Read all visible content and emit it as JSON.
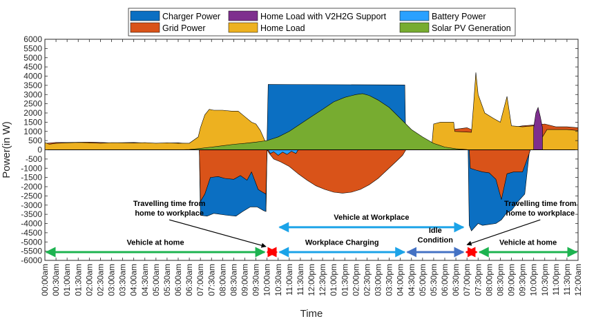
{
  "chart_data": {
    "type": "area",
    "xlabel": "Time",
    "ylabel": "Power(in W)",
    "ylim": [
      -6000,
      6000
    ],
    "ytick_step": 500,
    "x_unit": "hours",
    "xlim": [
      0,
      24
    ],
    "x_tick_labels": [
      "00:00am",
      "00:30am",
      "01:00am",
      "01:30am",
      "02:00am",
      "02:30am",
      "03:00am",
      "03:30am",
      "04:00am",
      "04:30am",
      "05:00am",
      "05:30am",
      "06:00am",
      "06:30am",
      "07:00am",
      "07:30am",
      "08:00am",
      "08:30am",
      "09:00am",
      "09:30am",
      "10:00am",
      "10:30am",
      "11:00am",
      "11:30am",
      "12:00pm",
      "12:30pm",
      "01:00pm",
      "01:30pm",
      "02:00pm",
      "02:30pm",
      "03:00pm",
      "03:30pm",
      "04:00pm",
      "04:30pm",
      "05:00pm",
      "05:30pm",
      "06:00pm",
      "06:30pm",
      "07:00pm",
      "07:30pm",
      "08:00pm",
      "08:30pm",
      "09:00pm",
      "09:30pm",
      "10:00pm",
      "10:30pm",
      "11:00pm",
      "11:30pm",
      "12:00am"
    ],
    "grid": false,
    "legend_position": "top",
    "series": [
      {
        "name": "Charger Power",
        "color": "#0b6fc2",
        "points": [
          [
            0,
            0
          ],
          [
            9.95,
            0
          ],
          [
            9.95,
            -3350
          ],
          [
            10,
            600
          ],
          [
            10.05,
            3550
          ],
          [
            16.2,
            3520
          ],
          [
            16.25,
            0
          ],
          [
            19.05,
            0
          ],
          [
            19.1,
            -4100
          ],
          [
            19.2,
            -4400
          ],
          [
            19.5,
            -4000
          ],
          [
            19.7,
            -4100
          ],
          [
            20,
            -4050
          ],
          [
            20.3,
            -4000
          ],
          [
            20.55,
            -3800
          ],
          [
            20.8,
            -3400
          ],
          [
            21,
            -3300
          ],
          [
            21.3,
            -2800
          ],
          [
            21.6,
            -2400
          ],
          [
            21.8,
            -200
          ],
          [
            21.85,
            0
          ],
          [
            24,
            0
          ]
        ],
        "lower": [
          [
            0,
            0
          ],
          [
            6.95,
            0
          ],
          [
            7,
            -3550
          ],
          [
            7.3,
            -3600
          ],
          [
            7.6,
            -3450
          ],
          [
            8.2,
            -3550
          ],
          [
            8.6,
            -3600
          ],
          [
            8.9,
            -3350
          ],
          [
            9.25,
            -3100
          ],
          [
            9.55,
            -3100
          ],
          [
            9.85,
            -3300
          ],
          [
            9.95,
            -3350
          ],
          [
            10,
            0
          ],
          [
            24,
            0
          ]
        ],
        "shape": "custom"
      },
      {
        "name": "Grid Power",
        "color": "#d95319",
        "points": [
          [
            0,
            0
          ],
          [
            6.95,
            0
          ],
          [
            7,
            -2800
          ],
          [
            7.2,
            -2400
          ],
          [
            7.45,
            -1500
          ],
          [
            7.8,
            -1450
          ],
          [
            8.1,
            -1550
          ],
          [
            8.5,
            -1600
          ],
          [
            8.8,
            -1400
          ],
          [
            9.1,
            -1650
          ],
          [
            9.3,
            -1200
          ],
          [
            9.6,
            -2150
          ],
          [
            9.8,
            -2300
          ],
          [
            9.95,
            -2400
          ],
          [
            10,
            0
          ],
          [
            10.1,
            -200
          ],
          [
            10.3,
            -500
          ],
          [
            10.6,
            -650
          ],
          [
            11,
            -900
          ],
          [
            11.4,
            -1300
          ],
          [
            11.8,
            -1650
          ],
          [
            12.2,
            -1950
          ],
          [
            12.6,
            -2150
          ],
          [
            13,
            -2300
          ],
          [
            13.4,
            -2350
          ],
          [
            13.8,
            -2300
          ],
          [
            14.2,
            -2150
          ],
          [
            14.6,
            -1900
          ],
          [
            15,
            -1550
          ],
          [
            15.4,
            -1100
          ],
          [
            15.8,
            -650
          ],
          [
            16.1,
            -300
          ],
          [
            16.25,
            0
          ],
          [
            19.1,
            0
          ],
          [
            19.15,
            -1000
          ],
          [
            19.4,
            -1100
          ],
          [
            19.7,
            -1200
          ],
          [
            20,
            -1250
          ],
          [
            20.3,
            -1600
          ],
          [
            20.55,
            -2700
          ],
          [
            20.8,
            -1300
          ],
          [
            21.1,
            -1200
          ],
          [
            21.5,
            -1200
          ],
          [
            21.8,
            -200
          ],
          [
            21.85,
            0
          ],
          [
            24,
            0
          ]
        ],
        "upper": [
          [
            0,
            350
          ],
          [
            0.5,
            400
          ],
          [
            1,
            400
          ],
          [
            2,
            420
          ],
          [
            3,
            380
          ],
          [
            4,
            400
          ],
          [
            5,
            350
          ],
          [
            6,
            380
          ],
          [
            6.5,
            330
          ],
          [
            7,
            300
          ],
          [
            8,
            300
          ],
          [
            9,
            300
          ],
          [
            9.9,
            300
          ],
          [
            10,
            0
          ],
          [
            16.25,
            0
          ],
          [
            16.5,
            0
          ],
          [
            17,
            0
          ],
          [
            17.4,
            0
          ],
          [
            18.3,
            1100
          ],
          [
            18.7,
            1150
          ],
          [
            19,
            1200
          ],
          [
            19.2,
            1100
          ],
          [
            19.5,
            1300
          ],
          [
            20,
            1200
          ],
          [
            21,
            1200
          ],
          [
            21.5,
            1300
          ],
          [
            22,
            1350
          ],
          [
            22.5,
            1400
          ],
          [
            23,
            1250
          ],
          [
            23.5,
            1250
          ],
          [
            24,
            1200
          ]
        ]
      },
      {
        "name": "Home Load",
        "color": "#edb120",
        "points": [
          [
            0,
            400
          ],
          [
            0.2,
            300
          ],
          [
            0.5,
            350
          ],
          [
            1,
            380
          ],
          [
            1.5,
            400
          ],
          [
            2,
            380
          ],
          [
            2.5,
            360
          ],
          [
            3,
            390
          ],
          [
            3.5,
            380
          ],
          [
            4,
            370
          ],
          [
            4.5,
            390
          ],
          [
            5,
            360
          ],
          [
            5.5,
            380
          ],
          [
            6,
            360
          ],
          [
            6.5,
            360
          ],
          [
            6.9,
            700
          ],
          [
            7,
            1200
          ],
          [
            7.2,
            1900
          ],
          [
            7.4,
            2200
          ],
          [
            7.6,
            2150
          ],
          [
            8,
            2150
          ],
          [
            8.4,
            2100
          ],
          [
            8.7,
            2100
          ],
          [
            9,
            1800
          ],
          [
            9.3,
            1500
          ],
          [
            9.5,
            1400
          ],
          [
            9.7,
            1050
          ],
          [
            9.9,
            500
          ],
          [
            10,
            0
          ],
          [
            16.2,
            0
          ],
          [
            17.4,
            0
          ],
          [
            17.5,
            1400
          ],
          [
            17.8,
            1500
          ],
          [
            18.4,
            1500
          ],
          [
            18.45,
            1000
          ],
          [
            19.2,
            950
          ],
          [
            19.3,
            2500
          ],
          [
            19.4,
            4200
          ],
          [
            19.5,
            3000
          ],
          [
            19.8,
            2000
          ],
          [
            20.2,
            1700
          ],
          [
            20.5,
            1500
          ],
          [
            20.8,
            2900
          ],
          [
            21,
            1300
          ],
          [
            21.5,
            1250
          ],
          [
            22,
            1300
          ],
          [
            22.3,
            500
          ],
          [
            22.6,
            1100
          ],
          [
            23,
            1100
          ],
          [
            23.5,
            1100
          ],
          [
            24,
            1050
          ]
        ]
      },
      {
        "name": "Solar PV Generation",
        "color": "#77ac30",
        "points": [
          [
            6,
            0
          ],
          [
            6.5,
            20
          ],
          [
            7,
            80
          ],
          [
            7.5,
            150
          ],
          [
            8,
            220
          ],
          [
            8.5,
            300
          ],
          [
            9,
            350
          ],
          [
            9.5,
            420
          ],
          [
            10,
            500
          ],
          [
            10.5,
            700
          ],
          [
            11,
            1000
          ],
          [
            11.5,
            1400
          ],
          [
            12,
            1800
          ],
          [
            12.5,
            2200
          ],
          [
            13,
            2600
          ],
          [
            13.5,
            2850
          ],
          [
            14,
            3000
          ],
          [
            14.3,
            3050
          ],
          [
            14.6,
            2950
          ],
          [
            15,
            2700
          ],
          [
            15.5,
            2300
          ],
          [
            16,
            1700
          ],
          [
            16.5,
            1100
          ],
          [
            17,
            700
          ],
          [
            17.5,
            350
          ],
          [
            18,
            150
          ],
          [
            18.5,
            60
          ],
          [
            19,
            10
          ],
          [
            19.3,
            0
          ]
        ]
      },
      {
        "name": "Home Load with V2H2G Support",
        "color": "#7e2f8e",
        "points": [
          [
            22.0,
            1200
          ],
          [
            22.1,
            2000
          ],
          [
            22.2,
            2300
          ],
          [
            22.3,
            1800
          ],
          [
            22.4,
            1200
          ]
        ]
      },
      {
        "name": "Battery Power",
        "color": "#2aa1ff",
        "points": [
          [
            10.05,
            0
          ],
          [
            10.15,
            -200
          ],
          [
            10.3,
            -100
          ],
          [
            10.5,
            -300
          ],
          [
            10.7,
            -120
          ],
          [
            10.9,
            -250
          ],
          [
            11.1,
            -80
          ],
          [
            11.3,
            -200
          ],
          [
            11.4,
            0
          ]
        ]
      }
    ],
    "annotations": [
      {
        "text": "Vehicle at home",
        "from": 0,
        "to": 9.95,
        "y": -5550,
        "color": "#1db350",
        "label_y": -5150
      },
      {
        "text": "Travelling time from home to workplace",
        "lines": [
          "Travelling time from",
          "home to workplace"
        ],
        "from": 9.95,
        "to": 10.5,
        "y": -5550,
        "color": "#ff0000",
        "label_x": 5.6,
        "label_y": -3050,
        "pointer_to": [
          9.95,
          -5250
        ]
      },
      {
        "text": "Workplace Charging",
        "from": 10.5,
        "to": 16.25,
        "y": -5550,
        "color": "#1ba3e8",
        "label_y": -5150
      },
      {
        "text": "Vehicle at Workplace",
        "from": 10.5,
        "to": 18.9,
        "y": -4200,
        "color": "#1ba3e8",
        "label_y": -3800
      },
      {
        "text": "Idle Condition",
        "lines": [
          "Idle",
          "Condition"
        ],
        "from": 16.25,
        "to": 18.9,
        "y": -5550,
        "color": "#4472c4",
        "label_y": -4500
      },
      {
        "text": "Travelling time from home to workplace",
        "lines": [
          "Travelling time from",
          "home to workplace"
        ],
        "from": 18.9,
        "to": 19.5,
        "y": -5550,
        "color": "#ff0000",
        "label_x": 22.3,
        "label_y": -3050,
        "pointer_to": [
          19.0,
          -5150
        ]
      },
      {
        "text": "Vehicle at home",
        "from": 19.5,
        "to": 24,
        "y": -5550,
        "color": "#1db350",
        "label_y": -5150
      }
    ],
    "legend": [
      {
        "name": "Charger Power",
        "color": "#0b6fc2"
      },
      {
        "name": "Home Load with V2H2G Support",
        "color": "#7e2f8e"
      },
      {
        "name": "Battery Power",
        "color": "#2aa1ff"
      },
      {
        "name": "Grid Power",
        "color": "#d95319"
      },
      {
        "name": "Home Load",
        "color": "#edb120"
      },
      {
        "name": "Solar PV Generation",
        "color": "#77ac30"
      }
    ]
  }
}
